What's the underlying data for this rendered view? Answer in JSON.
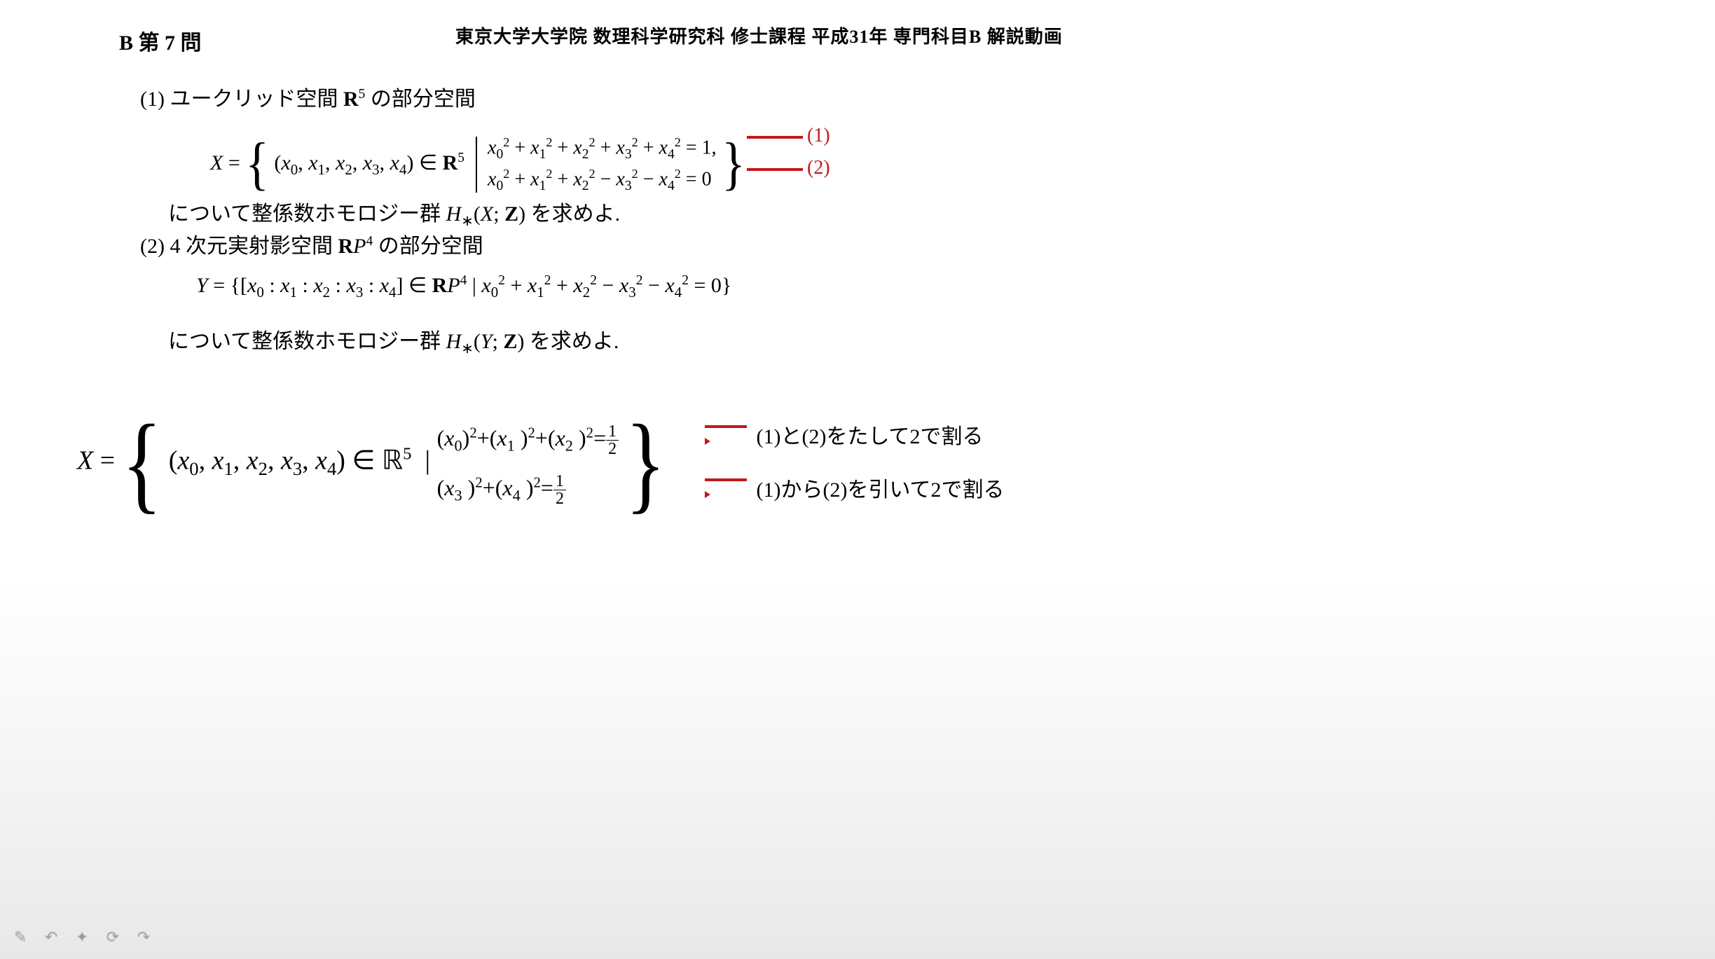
{
  "header": {
    "left": "B 第 7 問",
    "right": "東京大学大学院 数理科学研究科 修士課程 平成31年 専門科目B 解説動画"
  },
  "problem": {
    "part1_intro": "(1) ユークリッド空間 R⁵ の部分空間",
    "eq1_left": "X =",
    "eq1_tuple": "(x₀, x₁, x₂, x₃, x₄) ∈ R⁵",
    "eq1_cond1": "x₀² + x₁² + x₂² + x₃² + x₄² = 1,",
    "eq1_cond2": "x₀² + x₁² + x₂² − x₃² − x₄² = 0",
    "part1_tail": "について整係数ホモロジー群 H∗(X; Z) を求めよ.",
    "part2_intro": "(2) 4 次元実射影空間 RP⁴ の部分空間",
    "eq2": "Y = {[x₀ : x₁ : x₂ : x₃ : x₄] ∈ RP⁴ | x₀² + x₁² + x₂² − x₃² − x₄² = 0}",
    "part2_tail": "について整係数ホモロジー群 H∗(Y; Z) を求めよ."
  },
  "annotations": {
    "label1": "(1)",
    "label2": "(2)",
    "bottom_note1": "(1)と(2)をたして2で割る",
    "bottom_note2": "(1)から(2)を引いて2で割る",
    "red_color": "#c41818"
  },
  "bottom_eq": {
    "left": "X =",
    "tuple": "(x₀, x₁, x₂, x₃, x₄) ∈ ℝ⁵ |",
    "cond1": "(x₀)² + (x₁)² + (x₂)² = 1/2",
    "cond2": "(x₃)² + (x₄)² = 1/2"
  },
  "toolbar": {
    "icons": "✎ ↶ ✦ ⟳ ↷"
  },
  "style": {
    "body_font": "Times New Roman",
    "base_fontsize_pt": 30,
    "bottom_fontsize_pt": 38,
    "bg_top": "#ffffff",
    "bg_bottom": "#e8e8e8",
    "text_color": "#000000"
  }
}
